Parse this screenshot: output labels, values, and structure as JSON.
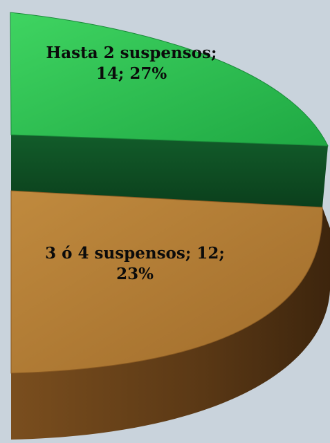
{
  "chart_data": {
    "type": "pie",
    "style": "3d-exploded-partial",
    "slices": [
      {
        "label": "Hasta 2 suspensos; 14; 27%",
        "category": "Hasta 2 suspensos",
        "value": 14,
        "percent": 27,
        "color": "#2bc04e",
        "side_color": "#0f4f24"
      },
      {
        "label": "3 ó 4 suspensos; 12; 23%",
        "category": "3 ó 4 suspensos",
        "value": 12,
        "percent": 23,
        "color": "#b07a33",
        "side_color": "#4a2e12"
      }
    ],
    "title": "",
    "legend": "none",
    "background_color": "#c9d3dc"
  }
}
